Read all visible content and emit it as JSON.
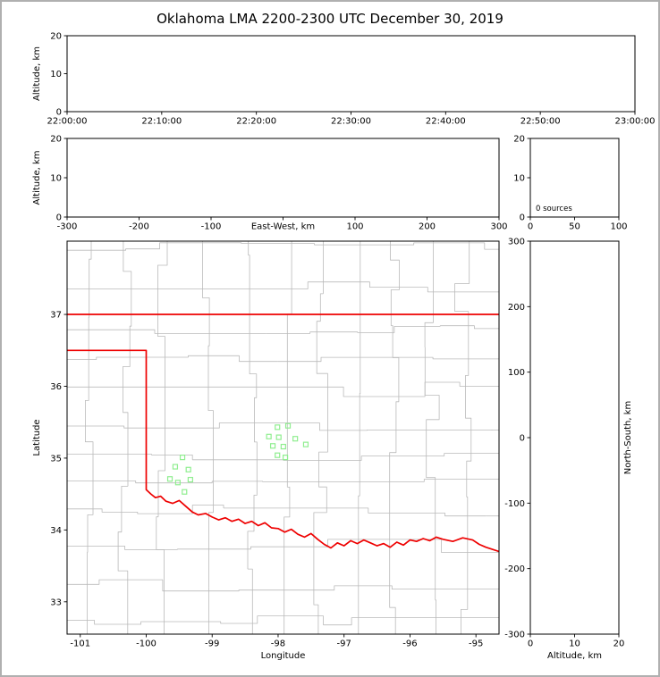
{
  "title": "Oklahoma LMA 2200-2300 UTC December 30, 2019",
  "colors": {
    "background": "#ffffff",
    "figure_border": "#b0b0b0",
    "frame": "#000000",
    "tick_label": "#000000",
    "county_line": "#bababa",
    "state_border": "#ee0000",
    "station_marker": "#90ee90"
  },
  "chart_data": {
    "type": "scatter",
    "description": "LMA VHF source display (no sources detected this hour) with Oklahoma station map",
    "panels": {
      "time_height": {
        "type": "scatter",
        "x_range": [
          0,
          3600
        ],
        "x_tick_values": [
          0,
          600,
          1200,
          1800,
          2400,
          3000,
          3600
        ],
        "x_tick_labels": [
          "22:00:00",
          "22:10:00",
          "22:20:00",
          "22:30:00",
          "22:40:00",
          "22:50:00",
          "23:00:00"
        ],
        "y_range": [
          0,
          20
        ],
        "y_tick_values": [
          0,
          10,
          20
        ],
        "y_tick_labels": [
          "0",
          "10",
          "20"
        ],
        "ylabel": "Altitude, km",
        "points": []
      },
      "ew_height": {
        "type": "scatter",
        "x_range": [
          -300,
          300
        ],
        "x_tick_values": [
          -300,
          -200,
          -100,
          0,
          100,
          200,
          300
        ],
        "x_tick_labels": [
          "-300",
          "-200",
          "-100",
          "",
          "100",
          "200",
          "300"
        ],
        "xlabel": "East-West, km",
        "xlabel_at_zero": true,
        "y_range": [
          0,
          20
        ],
        "y_tick_values": [
          0,
          10,
          20
        ],
        "y_tick_labels": [
          "0",
          "10",
          "20"
        ],
        "ylabel": "Altitude, km",
        "points": []
      },
      "histogram": {
        "type": "line",
        "x_range": [
          0,
          100
        ],
        "x_tick_values": [
          0,
          50,
          100
        ],
        "x_tick_labels": [
          "0",
          "50",
          "100"
        ],
        "y_range": [
          0,
          20
        ],
        "y_tick_values": [
          0,
          10,
          20
        ],
        "y_tick_labels": [
          "0",
          "10",
          "20"
        ],
        "annotation": "0 sources",
        "points": []
      },
      "map": {
        "type": "scatter",
        "x_range": [
          -101.2,
          -94.65
        ],
        "x_tick_values": [
          -101,
          -100,
          -99,
          -98,
          -97,
          -96,
          -95
        ],
        "x_tick_labels": [
          "-101",
          "-100",
          "-99",
          "-98",
          "-97",
          "-96",
          "-95"
        ],
        "xlabel": "Longitude",
        "y_range": [
          32.55,
          38.02
        ],
        "y_tick_values": [
          33,
          34,
          35,
          36,
          37
        ],
        "y_tick_labels": [
          "33",
          "34",
          "35",
          "36",
          "37"
        ],
        "ylabel": "Latitude",
        "county_grid": {
          "seed": 11,
          "v_spacing": 0.42,
          "h_spacing": 0.36
        },
        "stations_lon_lat": [
          [
            -99.45,
            35.01
          ],
          [
            -99.56,
            34.88
          ],
          [
            -99.36,
            34.84
          ],
          [
            -99.64,
            34.71
          ],
          [
            -99.33,
            34.7
          ],
          [
            -99.52,
            34.66
          ],
          [
            -99.42,
            34.53
          ],
          [
            -98.01,
            35.43
          ],
          [
            -97.85,
            35.45
          ],
          [
            -98.14,
            35.3
          ],
          [
            -97.99,
            35.29
          ],
          [
            -97.74,
            35.27
          ],
          [
            -98.08,
            35.17
          ],
          [
            -97.92,
            35.16
          ],
          [
            -97.58,
            35.19
          ],
          [
            -98.01,
            35.04
          ],
          [
            -97.89,
            35.01
          ]
        ],
        "state_border_segments": [
          [
            [
              -101.2,
              37.0
            ],
            [
              -94.65,
              37.0
            ]
          ],
          [
            [
              -101.2,
              36.5
            ],
            [
              -100.0,
              36.5
            ],
            [
              -100.0,
              34.56
            ],
            [
              -99.93,
              34.5
            ],
            [
              -99.86,
              34.45
            ],
            [
              -99.78,
              34.47
            ],
            [
              -99.7,
              34.4
            ],
            [
              -99.6,
              34.37
            ],
            [
              -99.5,
              34.41
            ],
            [
              -99.4,
              34.33
            ],
            [
              -99.3,
              34.25
            ],
            [
              -99.21,
              34.21
            ],
            [
              -99.1,
              34.23
            ],
            [
              -99.0,
              34.18
            ],
            [
              -98.9,
              34.14
            ],
            [
              -98.8,
              34.17
            ],
            [
              -98.7,
              34.12
            ],
            [
              -98.6,
              34.15
            ],
            [
              -98.5,
              34.09
            ],
            [
              -98.4,
              34.12
            ],
            [
              -98.3,
              34.06
            ],
            [
              -98.2,
              34.1
            ],
            [
              -98.1,
              34.03
            ],
            [
              -98.0,
              34.02
            ],
            [
              -97.9,
              33.97
            ],
            [
              -97.8,
              34.01
            ],
            [
              -97.7,
              33.94
            ],
            [
              -97.6,
              33.9
            ],
            [
              -97.5,
              33.95
            ],
            [
              -97.4,
              33.87
            ],
            [
              -97.3,
              33.8
            ],
            [
              -97.2,
              33.75
            ],
            [
              -97.1,
              33.82
            ],
            [
              -97.0,
              33.78
            ],
            [
              -96.9,
              33.85
            ],
            [
              -96.8,
              33.81
            ],
            [
              -96.7,
              33.86
            ],
            [
              -96.6,
              33.82
            ],
            [
              -96.5,
              33.78
            ],
            [
              -96.4,
              33.81
            ],
            [
              -96.3,
              33.76
            ],
            [
              -96.2,
              33.83
            ],
            [
              -96.1,
              33.79
            ],
            [
              -96.0,
              33.86
            ],
            [
              -95.9,
              33.84
            ],
            [
              -95.8,
              33.88
            ],
            [
              -95.7,
              33.85
            ],
            [
              -95.6,
              33.9
            ],
            [
              -95.5,
              33.87
            ],
            [
              -95.35,
              33.84
            ],
            [
              -95.2,
              33.89
            ],
            [
              -95.05,
              33.86
            ],
            [
              -94.95,
              33.8
            ],
            [
              -94.85,
              33.76
            ],
            [
              -94.75,
              33.73
            ],
            [
              -94.65,
              33.7
            ],
            [
              -94.55,
              33.66
            ]
          ]
        ],
        "points": []
      },
      "ns_height": {
        "type": "scatter",
        "x_range": [
          0,
          20
        ],
        "x_tick_values": [
          0,
          10,
          20
        ],
        "x_tick_labels": [
          "0",
          "10",
          "20"
        ],
        "xlabel": "Altitude, km",
        "y_range": [
          -300,
          300
        ],
        "y_tick_values": [
          -300,
          -200,
          -100,
          0,
          100,
          200,
          300
        ],
        "y_tick_labels": [
          "-300",
          "-200",
          "-100",
          "0",
          "100",
          "200",
          "300"
        ],
        "right_label": "North-South, km",
        "points": []
      }
    }
  }
}
